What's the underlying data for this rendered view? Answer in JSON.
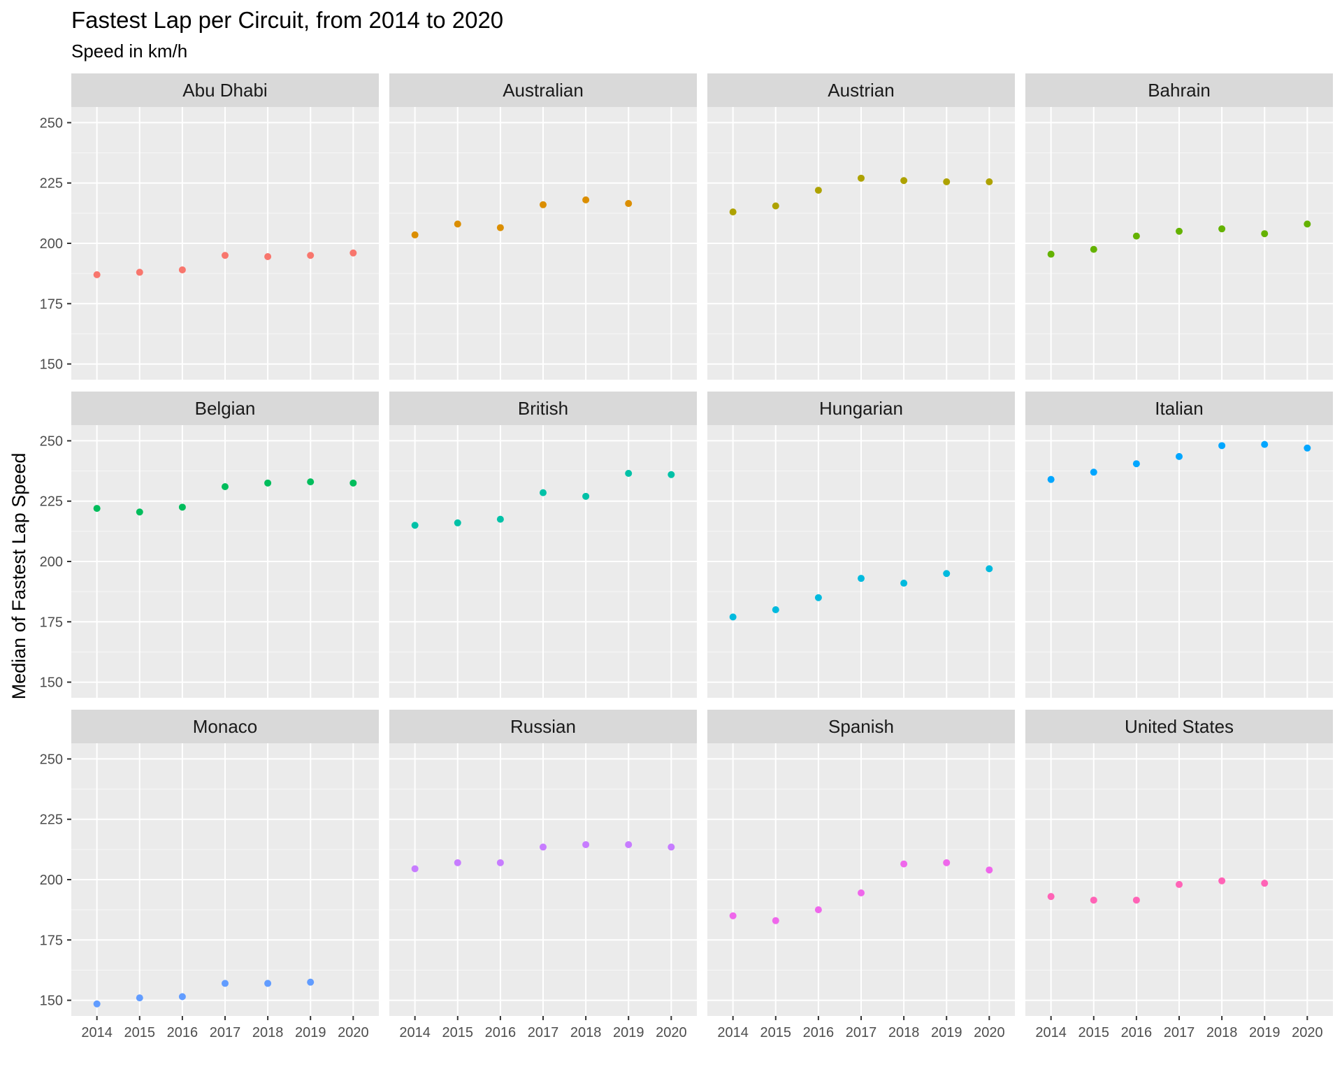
{
  "chart_data": {
    "type": "scatter",
    "title": "Fastest Lap per Circuit, from 2014 to 2020",
    "subtitle": "Speed in km/h",
    "xlabel": "",
    "ylabel": "Median of Fastest Lap Speed",
    "x": [
      2014,
      2015,
      2016,
      2017,
      2018,
      2019,
      2020
    ],
    "x_ticks": [
      "2014",
      "2015",
      "2016",
      "2017",
      "2018",
      "2019",
      "2020"
    ],
    "y_ticks": [
      150,
      175,
      200,
      225,
      250
    ],
    "ylim": [
      143.5,
      256.5
    ],
    "grid": true,
    "facet_layout": "4 columns x 3 rows, shared axes",
    "series": [
      {
        "name": "Abu Dhabi",
        "color": "#F8766D",
        "values": [
          187,
          188,
          189,
          195,
          194.5,
          195,
          196
        ]
      },
      {
        "name": "Australian",
        "color": "#DB8E00",
        "values": [
          203.5,
          208,
          206.5,
          216,
          218,
          216.5,
          null
        ]
      },
      {
        "name": "Austrian",
        "color": "#AEA200",
        "values": [
          213,
          215.5,
          222,
          227,
          226,
          225.5,
          225.5
        ]
      },
      {
        "name": "Bahrain",
        "color": "#64B200",
        "values": [
          195.5,
          197.5,
          203,
          205,
          206,
          204,
          208
        ]
      },
      {
        "name": "Belgian",
        "color": "#00BD5C",
        "values": [
          222,
          220.5,
          222.5,
          231,
          232.5,
          233,
          232.5
        ]
      },
      {
        "name": "British",
        "color": "#00C1A7",
        "values": [
          215,
          216,
          217.5,
          228.5,
          227,
          236.5,
          236
        ]
      },
      {
        "name": "Hungarian",
        "color": "#00BADE",
        "values": [
          177,
          180,
          185,
          193,
          191,
          195,
          197
        ]
      },
      {
        "name": "Italian",
        "color": "#00A6FF",
        "values": [
          234,
          237,
          240.5,
          243.5,
          248,
          248.5,
          247
        ]
      },
      {
        "name": "Monaco",
        "color": "#619CFF",
        "values": [
          148.5,
          151,
          151.5,
          157,
          157,
          157.5,
          null
        ]
      },
      {
        "name": "Russian",
        "color": "#C77CFF",
        "values": [
          204.5,
          207,
          207,
          213.5,
          214.5,
          214.5,
          213.5
        ]
      },
      {
        "name": "Spanish",
        "color": "#EF67EB",
        "values": [
          185,
          183,
          187.5,
          194.5,
          206.5,
          207,
          204
        ]
      },
      {
        "name": "United States",
        "color": "#FF63B6",
        "values": [
          193,
          191.5,
          191.5,
          198,
          199.5,
          198.5,
          null
        ]
      }
    ]
  }
}
